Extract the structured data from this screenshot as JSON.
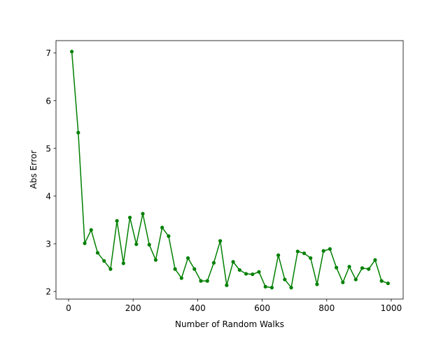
{
  "chart_data": {
    "type": "line",
    "title": "",
    "xlabel": "Number of Random Walks",
    "ylabel": "Abs Error",
    "xlim": [
      -39,
      1037
    ],
    "ylim": [
      1.84,
      7.26
    ],
    "xticks": [
      0,
      200,
      400,
      600,
      800,
      1000
    ],
    "yticks": [
      2,
      3,
      4,
      5,
      6,
      7
    ],
    "grid": false,
    "color": "#008000",
    "marker": "circle",
    "x": [
      10,
      30,
      50,
      70,
      90,
      110,
      130,
      150,
      170,
      190,
      210,
      230,
      250,
      270,
      290,
      310,
      330,
      350,
      370,
      390,
      410,
      430,
      450,
      470,
      490,
      510,
      530,
      550,
      570,
      590,
      610,
      630,
      650,
      670,
      690,
      710,
      730,
      750,
      770,
      790,
      810,
      830,
      850,
      870,
      890,
      910,
      930,
      950,
      970,
      990
    ],
    "y": [
      7.03,
      5.33,
      3.01,
      3.29,
      2.81,
      2.64,
      2.47,
      3.48,
      2.59,
      3.55,
      2.99,
      3.63,
      2.98,
      2.66,
      3.34,
      3.16,
      2.47,
      2.28,
      2.7,
      2.47,
      2.22,
      2.22,
      2.6,
      3.06,
      2.13,
      2.62,
      2.45,
      2.37,
      2.36,
      2.41,
      2.1,
      2.08,
      2.76,
      2.25,
      2.08,
      2.84,
      2.8,
      2.7,
      2.15,
      2.85,
      2.89,
      2.5,
      2.19,
      2.52,
      2.25,
      2.49,
      2.47,
      2.66,
      2.22,
      2.17
    ]
  }
}
